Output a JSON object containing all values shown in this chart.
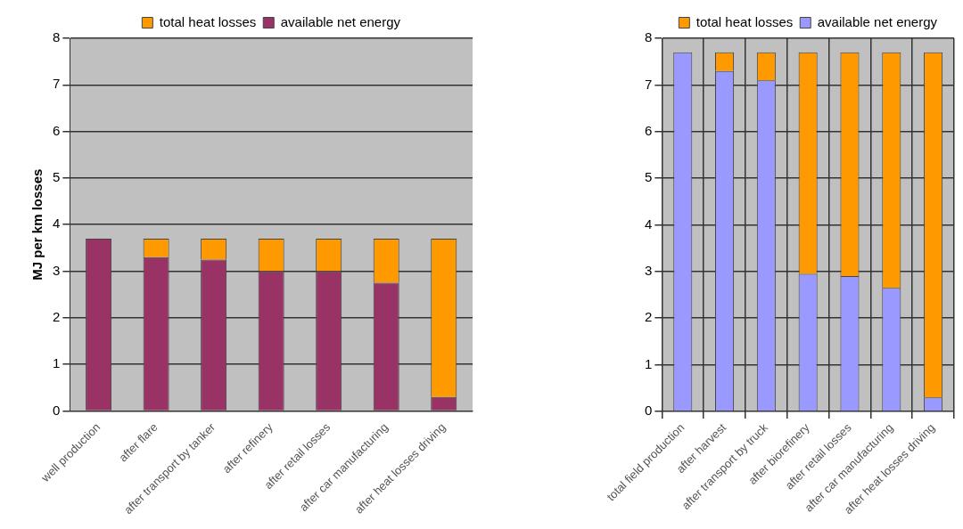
{
  "chart_data": [
    {
      "type": "bar",
      "stacked": true,
      "ylabel": "MJ per km losses",
      "categories": [
        "well production",
        "after flare",
        "after transport by tanker",
        "after refinery",
        "after retail losses",
        "after car manufacturing",
        "after heat losses driving"
      ],
      "series": [
        {
          "name": "available net energy",
          "color": "#993366",
          "values": [
            3.7,
            3.3,
            3.25,
            3.0,
            3.0,
            2.75,
            0.3
          ]
        },
        {
          "name": "total heat losses",
          "color": "#ff9900",
          "values": [
            0,
            0.4,
            0.45,
            0.7,
            0.7,
            0.95,
            3.4
          ]
        }
      ],
      "ylim": [
        0,
        8
      ],
      "yticks": [
        0,
        1,
        2,
        3,
        4,
        5,
        6,
        7,
        8
      ],
      "grid": "y",
      "legend": "top"
    },
    {
      "type": "bar",
      "stacked": true,
      "categories": [
        "total field production",
        "after harvest",
        "after transport by truck",
        "after biorefinery",
        "after retail losses",
        "after car manufacturing",
        "after heat losses driving"
      ],
      "series": [
        {
          "name": "available net energy",
          "color": "#9999ff",
          "values": [
            7.7,
            7.3,
            7.1,
            2.95,
            2.9,
            2.65,
            0.3
          ]
        },
        {
          "name": "total heat losses",
          "color": "#ff9900",
          "values": [
            0,
            0.4,
            0.6,
            4.75,
            4.8,
            5.05,
            7.4
          ]
        }
      ],
      "ylim": [
        0,
        8
      ],
      "yticks": [
        0,
        1,
        2,
        3,
        4,
        5,
        6,
        7,
        8
      ],
      "grid": true,
      "legend": "top"
    }
  ]
}
